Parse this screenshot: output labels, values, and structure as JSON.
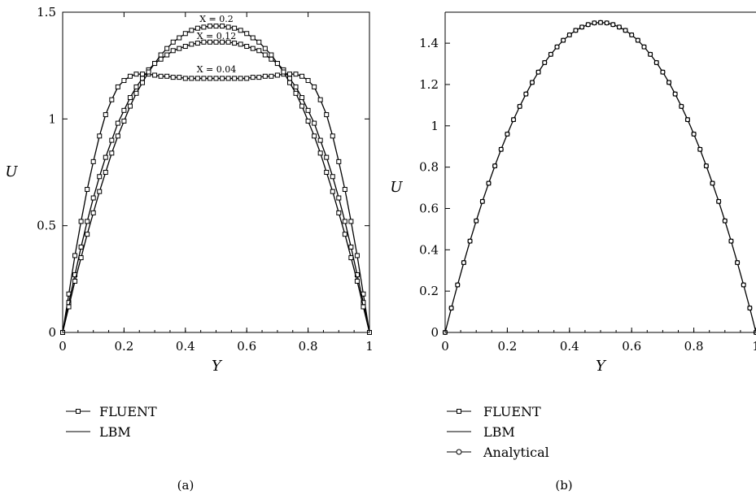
{
  "chart_data": [
    {
      "type": "line",
      "panel_label": "(a)",
      "xlabel": "Y",
      "ylabel": "U",
      "xlim": [
        0,
        1
      ],
      "ylim": [
        0,
        1.5
      ],
      "x_ticks": [
        "0",
        "0.2",
        "0.4",
        "0.6",
        "0.8",
        "1"
      ],
      "y_ticks": [
        "0",
        "0.5",
        "1",
        "1.5"
      ],
      "grid": false,
      "legend": {
        "placement": "below-left",
        "entries": [
          "FLUENT",
          "LBM"
        ]
      },
      "annotations": [
        {
          "text": "X = 0.2",
          "at": [
            0.5,
            1.47
          ]
        },
        {
          "text": "X = 0.12",
          "at": [
            0.5,
            1.39
          ]
        },
        {
          "text": "X = 0.04",
          "at": [
            0.5,
            1.235
          ]
        }
      ],
      "series": [
        {
          "profile": "X = 0.04",
          "x": [
            0,
            0.02,
            0.04,
            0.06,
            0.08,
            0.1,
            0.12,
            0.14,
            0.16,
            0.18,
            0.2,
            0.22,
            0.24,
            0.26,
            0.28,
            0.3,
            0.32,
            0.34,
            0.36,
            0.38,
            0.4,
            0.42,
            0.44,
            0.46,
            0.48,
            0.5,
            0.52,
            0.54,
            0.56,
            0.58,
            0.6,
            0.62,
            0.64,
            0.66,
            0.68,
            0.7,
            0.72,
            0.74,
            0.76,
            0.78,
            0.8,
            0.82,
            0.84,
            0.86,
            0.88,
            0.9,
            0.92,
            0.94,
            0.96,
            0.98,
            1
          ],
          "y": [
            0,
            0.18,
            0.36,
            0.52,
            0.67,
            0.8,
            0.92,
            1.02,
            1.09,
            1.15,
            1.18,
            1.2,
            1.21,
            1.21,
            1.21,
            1.205,
            1.2,
            1.2,
            1.195,
            1.195,
            1.19,
            1.19,
            1.19,
            1.19,
            1.19,
            1.19,
            1.19,
            1.19,
            1.19,
            1.19,
            1.19,
            1.195,
            1.195,
            1.2,
            1.2,
            1.205,
            1.21,
            1.21,
            1.21,
            1.2,
            1.18,
            1.15,
            1.09,
            1.02,
            0.92,
            0.8,
            0.67,
            0.52,
            0.36,
            0.18,
            0
          ]
        },
        {
          "profile": "X = 0.12",
          "x": [
            0,
            0.02,
            0.04,
            0.06,
            0.08,
            0.1,
            0.12,
            0.14,
            0.16,
            0.18,
            0.2,
            0.22,
            0.24,
            0.26,
            0.28,
            0.3,
            0.32,
            0.34,
            0.36,
            0.38,
            0.4,
            0.42,
            0.44,
            0.46,
            0.48,
            0.5,
            0.52,
            0.54,
            0.56,
            0.58,
            0.6,
            0.62,
            0.64,
            0.66,
            0.68,
            0.7,
            0.72,
            0.74,
            0.76,
            0.78,
            0.8,
            0.82,
            0.84,
            0.86,
            0.88,
            0.9,
            0.92,
            0.94,
            0.96,
            0.98,
            1
          ],
          "y": [
            0,
            0.14,
            0.27,
            0.4,
            0.52,
            0.63,
            0.73,
            0.82,
            0.9,
            0.98,
            1.04,
            1.1,
            1.15,
            1.19,
            1.23,
            1.26,
            1.28,
            1.3,
            1.32,
            1.33,
            1.34,
            1.35,
            1.355,
            1.36,
            1.36,
            1.36,
            1.36,
            1.36,
            1.355,
            1.35,
            1.34,
            1.33,
            1.32,
            1.3,
            1.28,
            1.26,
            1.23,
            1.19,
            1.15,
            1.1,
            1.04,
            0.98,
            0.9,
            0.82,
            0.73,
            0.63,
            0.52,
            0.4,
            0.27,
            0.14,
            0
          ]
        },
        {
          "profile": "X = 0.2",
          "x": [
            0,
            0.02,
            0.04,
            0.06,
            0.08,
            0.1,
            0.12,
            0.14,
            0.16,
            0.18,
            0.2,
            0.22,
            0.24,
            0.26,
            0.28,
            0.3,
            0.32,
            0.34,
            0.36,
            0.38,
            0.4,
            0.42,
            0.44,
            0.46,
            0.48,
            0.5,
            0.52,
            0.54,
            0.56,
            0.58,
            0.6,
            0.62,
            0.64,
            0.66,
            0.68,
            0.7,
            0.72,
            0.74,
            0.76,
            0.78,
            0.8,
            0.82,
            0.84,
            0.86,
            0.88,
            0.9,
            0.92,
            0.94,
            0.96,
            0.98,
            1
          ],
          "y": [
            0,
            0.12,
            0.24,
            0.35,
            0.46,
            0.56,
            0.66,
            0.75,
            0.84,
            0.92,
            0.99,
            1.06,
            1.12,
            1.17,
            1.22,
            1.26,
            1.3,
            1.33,
            1.36,
            1.38,
            1.4,
            1.415,
            1.425,
            1.43,
            1.435,
            1.435,
            1.435,
            1.43,
            1.425,
            1.415,
            1.4,
            1.38,
            1.36,
            1.33,
            1.3,
            1.26,
            1.22,
            1.17,
            1.12,
            1.06,
            0.99,
            0.92,
            0.84,
            0.75,
            0.66,
            0.56,
            0.46,
            0.35,
            0.24,
            0.12,
            0
          ]
        }
      ]
    },
    {
      "type": "line",
      "panel_label": "(b)",
      "xlabel": "Y",
      "ylabel": "U",
      "xlim": [
        0,
        1
      ],
      "ylim": [
        0,
        1.55
      ],
      "x_ticks": [
        "0",
        "0.2",
        "0.4",
        "0.6",
        "0.8",
        "1"
      ],
      "y_ticks": [
        "0",
        "0.2",
        "0.4",
        "0.6",
        "0.8",
        "1",
        "1.2",
        "1.4"
      ],
      "grid": false,
      "legend": {
        "placement": "below-left",
        "entries": [
          "FLUENT",
          "LBM",
          "Analytical"
        ]
      },
      "series": [
        {
          "name": "Analytical",
          "x": [
            0,
            0.02,
            0.04,
            0.06,
            0.08,
            0.1,
            0.12,
            0.14,
            0.16,
            0.18,
            0.2,
            0.22,
            0.24,
            0.26,
            0.28,
            0.3,
            0.32,
            0.34,
            0.36,
            0.38,
            0.4,
            0.42,
            0.44,
            0.46,
            0.48,
            0.5,
            0.52,
            0.54,
            0.56,
            0.58,
            0.6,
            0.62,
            0.64,
            0.66,
            0.68,
            0.7,
            0.72,
            0.74,
            0.76,
            0.78,
            0.8,
            0.82,
            0.84,
            0.86,
            0.88,
            0.9,
            0.92,
            0.94,
            0.96,
            0.98,
            1
          ],
          "y": [
            0,
            0.118,
            0.23,
            0.338,
            0.442,
            0.54,
            0.634,
            0.722,
            0.806,
            0.886,
            0.96,
            1.03,
            1.094,
            1.154,
            1.21,
            1.26,
            1.306,
            1.346,
            1.382,
            1.414,
            1.44,
            1.462,
            1.478,
            1.49,
            1.498,
            1.5,
            1.498,
            1.49,
            1.478,
            1.462,
            1.44,
            1.414,
            1.382,
            1.346,
            1.306,
            1.26,
            1.21,
            1.154,
            1.094,
            1.03,
            0.96,
            0.886,
            0.806,
            0.722,
            0.634,
            0.54,
            0.442,
            0.338,
            0.23,
            0.118,
            0
          ]
        }
      ]
    }
  ]
}
